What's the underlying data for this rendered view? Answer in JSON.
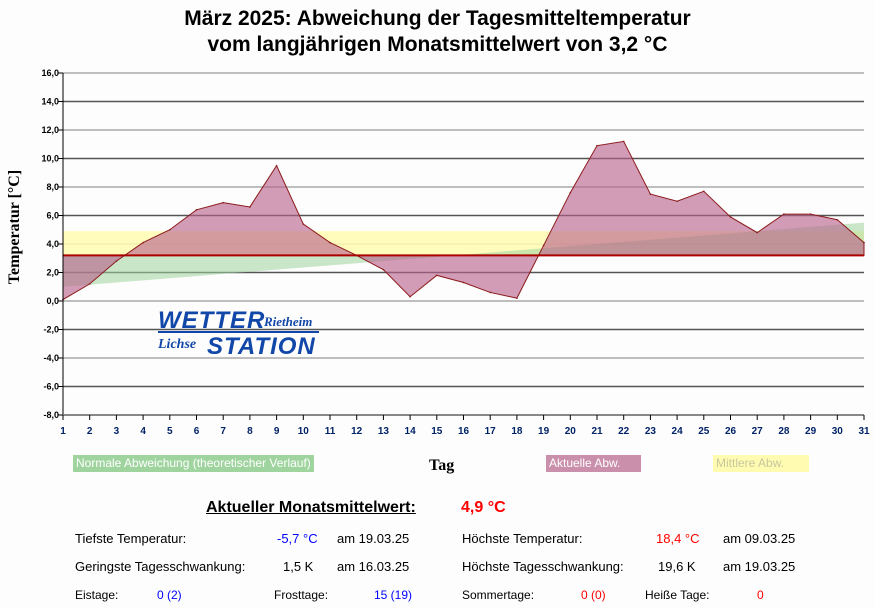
{
  "title_line1": "März 2025: Abweichung der Tagesmitteltemperatur",
  "title_line2": "vom langjährigen Monatsmittelwert von 3,2 °C",
  "chart_data": {
    "type": "area",
    "ylabel": "Temperatur [°C]",
    "xlabel": "Tag",
    "ylim": [
      -8,
      16
    ],
    "yticks": [
      "16,0",
      "14,0",
      "12,0",
      "10,0",
      "8,0",
      "6,0",
      "4,0",
      "2,0",
      "0,0",
      "-2,0",
      "-4,0",
      "-6,0",
      "-8,0"
    ],
    "x": [
      1,
      2,
      3,
      4,
      5,
      6,
      7,
      8,
      9,
      10,
      11,
      12,
      13,
      14,
      15,
      16,
      17,
      18,
      19,
      20,
      21,
      22,
      23,
      24,
      25,
      26,
      27,
      28,
      29,
      30,
      31
    ],
    "baseline": 3.2,
    "series": [
      {
        "name": "Normale Abweichung (theoretischer Verlauf)",
        "color": "#9fd49f",
        "values": [
          1.0,
          1.15,
          1.3,
          1.45,
          1.6,
          1.75,
          1.9,
          2.05,
          2.2,
          2.35,
          2.5,
          2.65,
          2.8,
          2.95,
          3.1,
          3.25,
          3.4,
          3.55,
          3.7,
          3.85,
          4.0,
          4.15,
          4.3,
          4.45,
          4.6,
          4.75,
          4.9,
          5.05,
          5.2,
          5.35,
          5.5
        ]
      },
      {
        "name": "Aktuelle Abw.",
        "color": "#b8608a",
        "values": [
          0.1,
          1.2,
          2.8,
          4.1,
          5.0,
          6.4,
          6.9,
          6.6,
          9.5,
          5.4,
          4.1,
          3.2,
          2.2,
          0.3,
          1.8,
          1.3,
          0.6,
          0.2,
          3.9,
          7.6,
          10.9,
          11.2,
          7.5,
          7.0,
          7.7,
          5.9,
          4.8,
          6.1,
          6.1,
          5.7,
          4.1
        ]
      },
      {
        "name": "Mittlere Abw.",
        "color": "#fffbb0",
        "value": 4.9
      }
    ]
  },
  "logo": {
    "line1": "WETTER",
    "line2": "STATION",
    "left": "Lichse",
    "right": "Rietheim"
  },
  "stats": {
    "monthly_label": "Aktueller Monatsmittelwert:",
    "monthly_value": "4,9 °C",
    "min_label": "Tiefste Temperatur:",
    "min_value": "-5,7 °C",
    "min_date": "am 19.03.25",
    "max_label": "Höchste Temperatur:",
    "max_value": "18,4 °C",
    "max_date": "am 09.03.25",
    "minrange_label": "Geringste Tagesschwankung:",
    "minrange_value": "1,5 K",
    "minrange_date": "am 16.03.25",
    "maxrange_label": "Höchste Tagesschwankung:",
    "maxrange_value": "19,6 K",
    "maxrange_date": "am 19.03.25",
    "ice_label": "Eistage:",
    "ice_value": "0 (2)",
    "frost_label": "Frosttage:",
    "frost_value": "15 (19)",
    "summer_label": "Sommertage:",
    "summer_value": "0 (0)",
    "hot_label": "Heiße Tage:",
    "hot_value": "0"
  }
}
